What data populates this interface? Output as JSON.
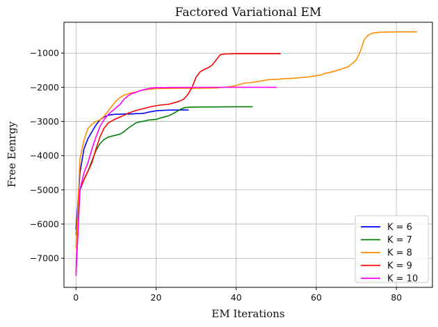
{
  "chart_data": {
    "type": "line",
    "title": "Factored Variational EM",
    "xlabel": "EM Iterations",
    "ylabel": "Free Eenrgy",
    "xlim": [
      -3,
      89
    ],
    "ylim": [
      -7850,
      -100
    ],
    "xticks": [
      0,
      20,
      40,
      60,
      80
    ],
    "yticks": [
      -7000,
      -6000,
      -5000,
      -4000,
      -3000,
      -2000,
      -1000
    ],
    "grid": true,
    "legend_position": "lower-right",
    "series": [
      {
        "name": "K = 6",
        "color": "#0000ff",
        "x": [
          0,
          1,
          2,
          3,
          4,
          5,
          6,
          7,
          8,
          9,
          10,
          11,
          12,
          13,
          14,
          15,
          16,
          17,
          18,
          19,
          20,
          21,
          22,
          23,
          24,
          25,
          26,
          27,
          28
        ],
        "y": [
          -6150,
          -4500,
          -3800,
          -3500,
          -3300,
          -3100,
          -2950,
          -2870,
          -2820,
          -2800,
          -2790,
          -2790,
          -2780,
          -2780,
          -2780,
          -2770,
          -2770,
          -2760,
          -2730,
          -2710,
          -2690,
          -2680,
          -2675,
          -2670,
          -2668,
          -2667,
          -2666,
          -2665,
          -2665
        ]
      },
      {
        "name": "K = 7",
        "color": "#008000",
        "x": [
          0,
          1,
          2,
          3,
          4,
          5,
          6,
          7,
          8,
          9,
          10,
          11,
          12,
          13,
          14,
          15,
          16,
          17,
          18,
          19,
          20,
          21,
          22,
          23,
          24,
          25,
          26,
          27,
          28,
          29,
          30,
          35,
          40,
          44
        ],
        "y": [
          -6300,
          -5000,
          -4700,
          -4450,
          -4150,
          -3850,
          -3650,
          -3530,
          -3460,
          -3430,
          -3400,
          -3370,
          -3300,
          -3200,
          -3120,
          -3040,
          -3010,
          -2990,
          -2960,
          -2950,
          -2940,
          -2900,
          -2870,
          -2840,
          -2790,
          -2720,
          -2650,
          -2600,
          -2585,
          -2580,
          -2578,
          -2575,
          -2570,
          -2570
        ]
      },
      {
        "name": "K = 8",
        "color": "#ff8c00",
        "x": [
          0,
          1,
          2,
          3,
          4,
          5,
          6,
          7,
          8,
          9,
          10,
          11,
          12,
          13,
          14,
          15,
          16,
          17,
          18,
          19,
          20,
          25,
          30,
          35,
          38,
          40,
          42,
          44,
          46,
          48,
          50,
          52,
          54,
          56,
          58,
          60,
          61,
          62,
          64,
          66,
          68,
          69,
          70,
          71,
          72,
          73,
          74,
          76,
          80,
          85
        ],
        "y": [
          -6700,
          -4100,
          -3550,
          -3200,
          -3080,
          -3000,
          -2950,
          -2850,
          -2700,
          -2550,
          -2400,
          -2300,
          -2230,
          -2190,
          -2160,
          -2140,
          -2100,
          -2080,
          -2060,
          -2050,
          -2040,
          -2030,
          -2030,
          -2020,
          -1990,
          -1950,
          -1880,
          -1860,
          -1820,
          -1780,
          -1770,
          -1750,
          -1740,
          -1720,
          -1700,
          -1660,
          -1650,
          -1600,
          -1550,
          -1480,
          -1400,
          -1300,
          -1200,
          -950,
          -600,
          -470,
          -420,
          -390,
          -380,
          -380
        ]
      },
      {
        "name": "K = 9",
        "color": "#ff0000",
        "x": [
          0,
          1,
          2,
          3,
          4,
          5,
          6,
          7,
          8,
          9,
          10,
          11,
          12,
          13,
          14,
          15,
          16,
          17,
          18,
          19,
          20,
          21,
          22,
          23,
          24,
          25,
          26,
          27,
          28,
          29,
          30,
          31,
          32,
          33,
          34,
          35,
          36,
          37,
          38,
          40,
          45,
          51
        ],
        "y": [
          -7400,
          -5000,
          -4700,
          -4450,
          -4200,
          -3800,
          -3450,
          -3200,
          -3050,
          -2980,
          -2920,
          -2870,
          -2820,
          -2760,
          -2720,
          -2680,
          -2650,
          -2620,
          -2590,
          -2560,
          -2540,
          -2520,
          -2510,
          -2500,
          -2470,
          -2440,
          -2400,
          -2340,
          -2200,
          -2000,
          -1700,
          -1550,
          -1480,
          -1430,
          -1350,
          -1200,
          -1050,
          -1030,
          -1025,
          -1020,
          -1020,
          -1020
        ]
      },
      {
        "name": "K = 10",
        "color": "#ff00ff",
        "x": [
          0,
          1,
          2,
          3,
          4,
          5,
          6,
          7,
          8,
          9,
          10,
          11,
          12,
          13,
          14,
          15,
          16,
          17,
          18,
          19,
          20,
          25,
          30,
          35,
          40,
          45,
          50
        ],
        "y": [
          -7500,
          -5000,
          -4500,
          -4200,
          -3800,
          -3450,
          -3150,
          -2950,
          -2800,
          -2700,
          -2600,
          -2500,
          -2350,
          -2250,
          -2180,
          -2150,
          -2100,
          -2070,
          -2040,
          -2020,
          -2010,
          -2005,
          -2002,
          -2001,
          -2000,
          -2000,
          -2000
        ]
      }
    ]
  }
}
